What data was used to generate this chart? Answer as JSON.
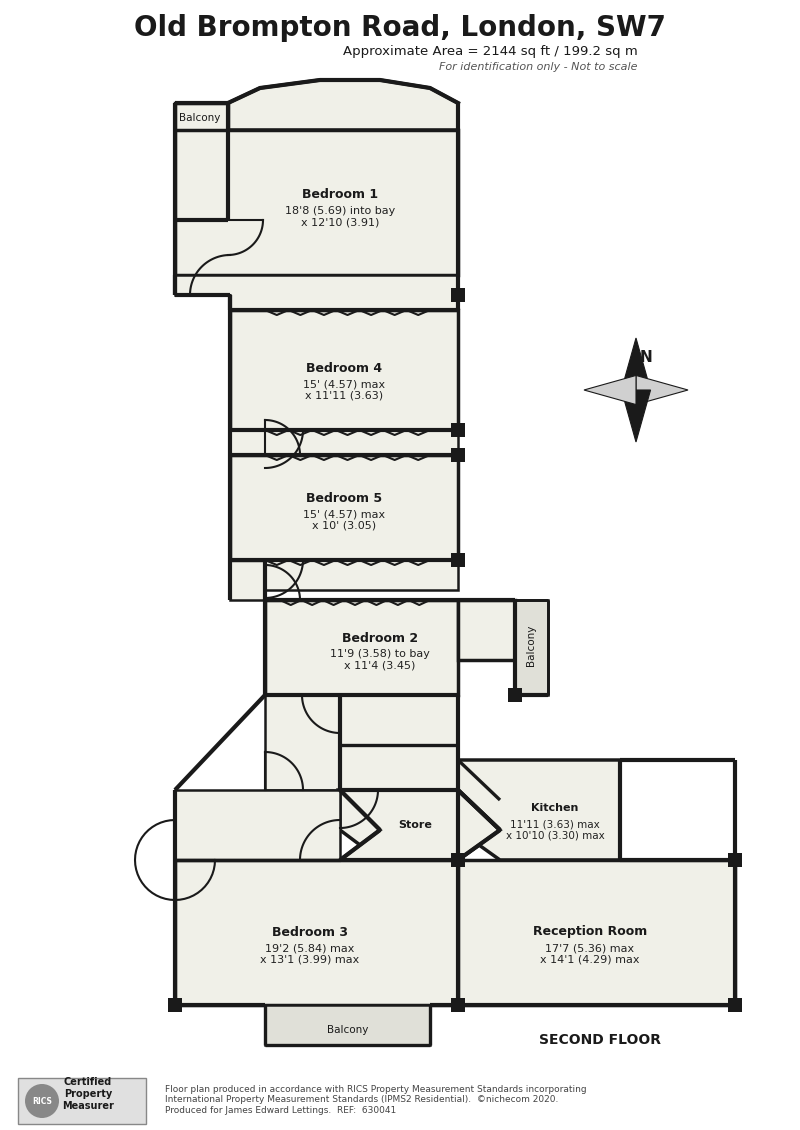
{
  "title": "Old Brompton Road, London, SW7",
  "subtitle": "Approximate Area = 2144 sq ft / 199.2 sq m",
  "subtitle2": "For identification only - Not to scale",
  "wall_color": "#1a1a1a",
  "room_fill": "#f0f0e8",
  "balcony_fill": "#e0e0d8",
  "footer_text": "Floor plan produced in accordance with RICS Property Measurement Standards incorporating\nInternational Property Measurement Standards (IPMS2 Residential).  ©nichecom 2020.\nProduced for James Edward Lettings.  REF:  630041",
  "certified_text": "Certified\nProperty\nMeasurer"
}
